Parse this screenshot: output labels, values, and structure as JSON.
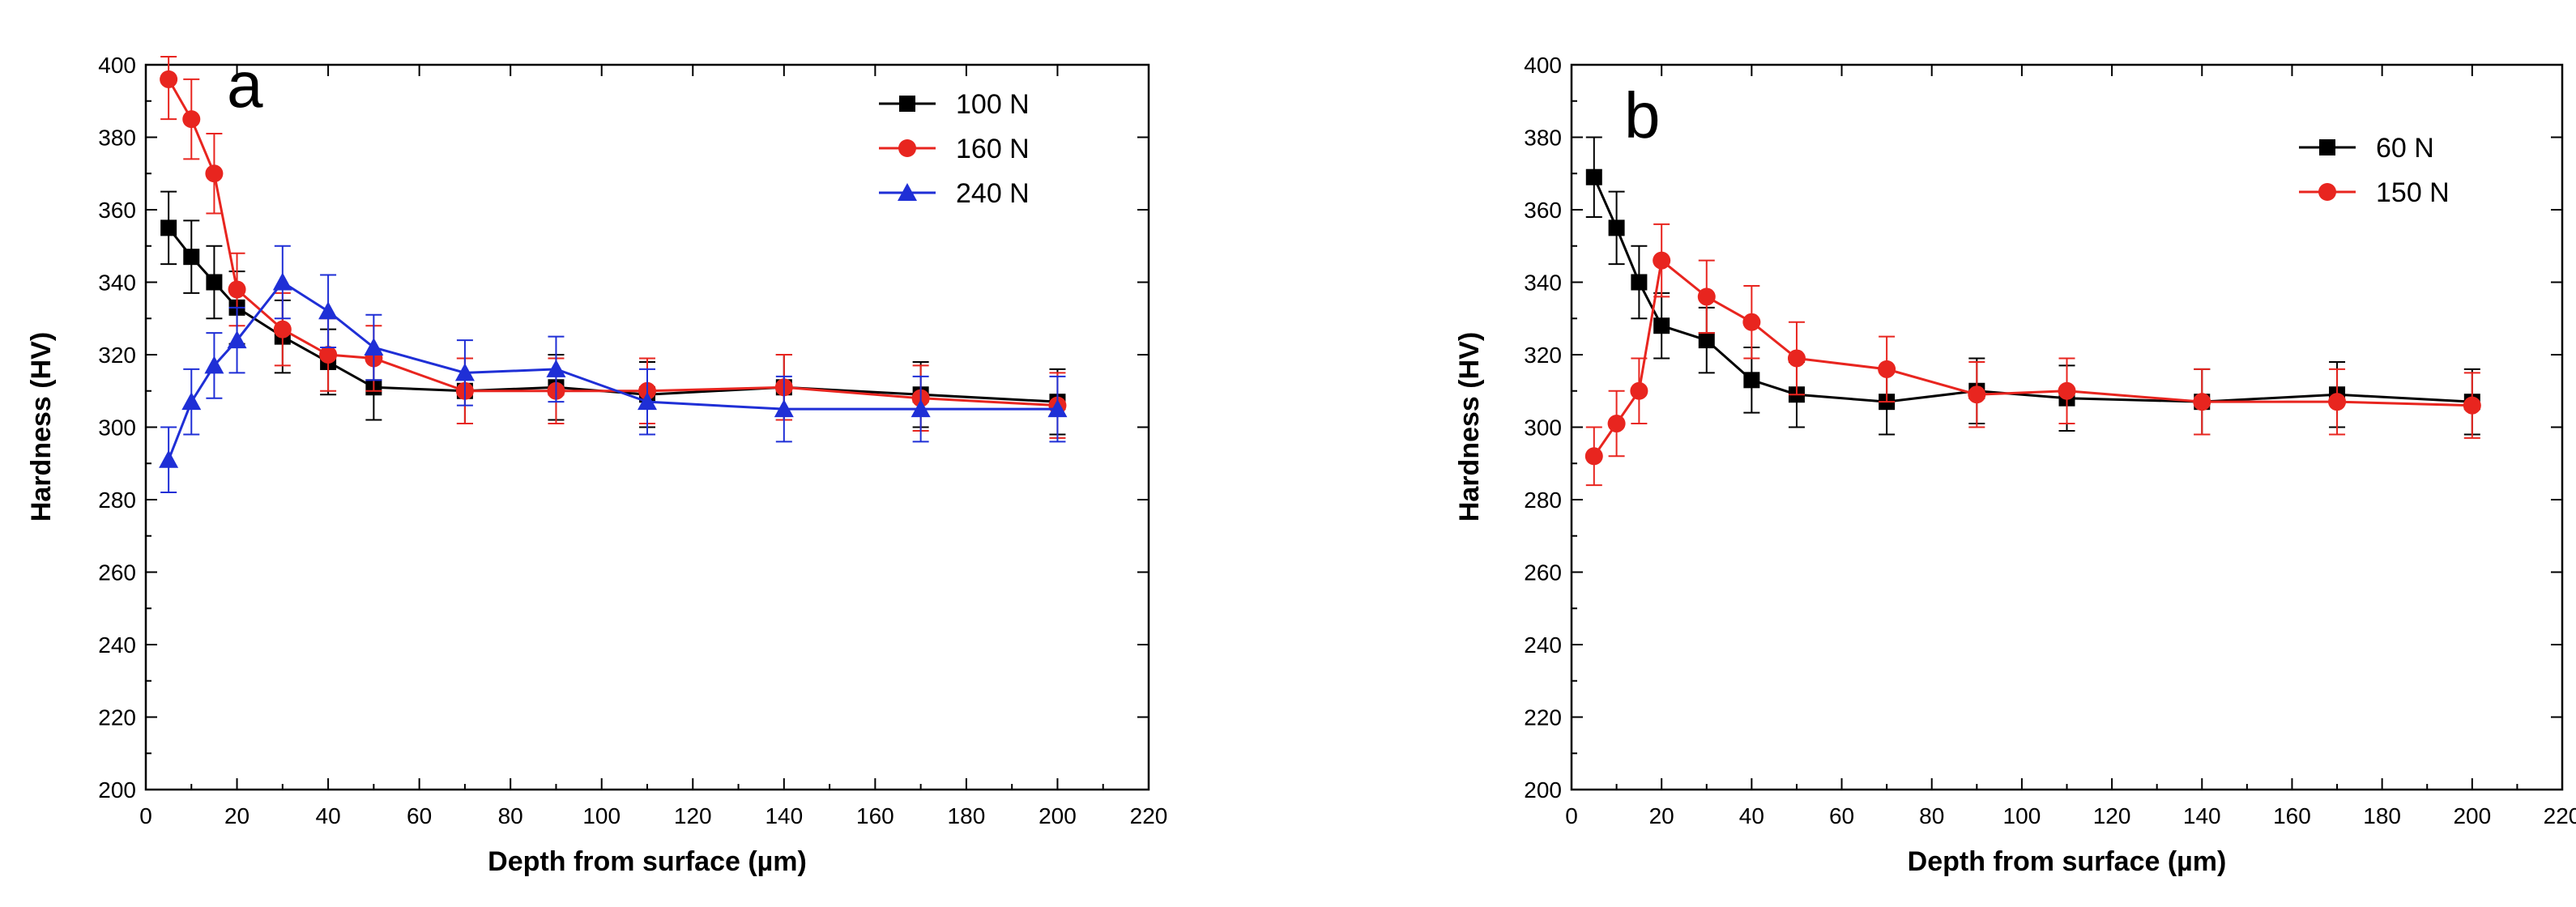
{
  "chart_data": [
    {
      "type": "line",
      "panel_label": "a",
      "xlabel": "Depth from surface (µm)",
      "ylabel": "Hardness (HV)",
      "xlim": [
        0,
        220
      ],
      "ylim": [
        200,
        400
      ],
      "xticks": [
        0,
        20,
        40,
        60,
        80,
        100,
        120,
        140,
        160,
        180,
        200,
        220
      ],
      "yticks": [
        200,
        220,
        240,
        260,
        280,
        300,
        320,
        340,
        360,
        380,
        400
      ],
      "legend_position": "top-right",
      "series": [
        {
          "name": "100 N",
          "color": "#000000",
          "marker": "square",
          "x": [
            5,
            10,
            15,
            20,
            30,
            40,
            50,
            70,
            90,
            110,
            140,
            170,
            200
          ],
          "y": [
            355,
            347,
            340,
            333,
            325,
            318,
            311,
            310,
            311,
            309,
            311,
            309,
            307
          ],
          "err": [
            10,
            10,
            10,
            10,
            10,
            9,
            9,
            9,
            9,
            9,
            9,
            9,
            9
          ]
        },
        {
          "name": "160 N",
          "color": "#e8251f",
          "marker": "circle",
          "x": [
            5,
            10,
            15,
            20,
            30,
            40,
            50,
            70,
            90,
            110,
            140,
            170,
            200
          ],
          "y": [
            396,
            385,
            370,
            338,
            327,
            320,
            319,
            310,
            310,
            310,
            311,
            308,
            306
          ],
          "err": [
            11,
            11,
            11,
            10,
            10,
            10,
            9,
            9,
            9,
            9,
            9,
            9,
            9
          ]
        },
        {
          "name": "240 N",
          "color": "#1f2fd6",
          "marker": "triangle",
          "x": [
            5,
            10,
            15,
            20,
            30,
            40,
            50,
            70,
            90,
            110,
            140,
            170,
            200
          ],
          "y": [
            291,
            307,
            317,
            324,
            340,
            332,
            322,
            315,
            316,
            307,
            305,
            305,
            305
          ],
          "err": [
            9,
            9,
            9,
            9,
            10,
            10,
            9,
            9,
            9,
            9,
            9,
            9,
            9
          ]
        }
      ]
    },
    {
      "type": "line",
      "panel_label": "b",
      "xlabel": "Depth from surface (µm)",
      "ylabel": "Hardness (HV)",
      "xlim": [
        0,
        220
      ],
      "ylim": [
        200,
        400
      ],
      "xticks": [
        0,
        20,
        40,
        60,
        80,
        100,
        120,
        140,
        160,
        180,
        200,
        220
      ],
      "yticks": [
        200,
        220,
        240,
        260,
        280,
        300,
        320,
        340,
        360,
        380,
        400
      ],
      "legend_position": "top-right",
      "series": [
        {
          "name": "60 N",
          "color": "#000000",
          "marker": "square",
          "x": [
            5,
            10,
            15,
            20,
            30,
            40,
            50,
            70,
            90,
            110,
            140,
            170,
            200
          ],
          "y": [
            369,
            355,
            340,
            328,
            324,
            313,
            309,
            307,
            310,
            308,
            307,
            309,
            307
          ],
          "err": [
            11,
            10,
            10,
            9,
            9,
            9,
            9,
            9,
            9,
            9,
            9,
            9,
            9
          ]
        },
        {
          "name": "150 N",
          "color": "#e8251f",
          "marker": "circle",
          "x": [
            5,
            10,
            15,
            20,
            30,
            40,
            50,
            70,
            90,
            110,
            140,
            170,
            200
          ],
          "y": [
            292,
            301,
            310,
            346,
            336,
            329,
            319,
            316,
            309,
            310,
            307,
            307,
            306
          ],
          "err": [
            8,
            9,
            9,
            10,
            10,
            10,
            10,
            9,
            9,
            9,
            9,
            9,
            9
          ]
        }
      ]
    }
  ]
}
